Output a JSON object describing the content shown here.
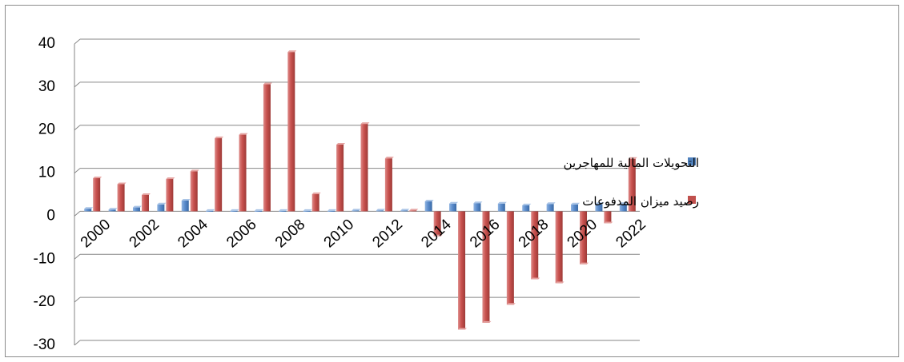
{
  "chart_data": {
    "type": "bar",
    "title": "",
    "xlabel": "",
    "ylabel": "",
    "ylim": [
      -30,
      40
    ],
    "yticks": [
      -30,
      -20,
      -10,
      0,
      10,
      20,
      30,
      40
    ],
    "grid": true,
    "legend_position": "right",
    "categories": [
      2000,
      2001,
      2002,
      2003,
      2004,
      2005,
      2006,
      2007,
      2008,
      2009,
      2010,
      2011,
      2012,
      2013,
      2014,
      2015,
      2016,
      2017,
      2018,
      2019,
      2020,
      2021,
      2022
    ],
    "tick_labels": [
      "2000",
      "2002",
      "2004",
      "2006",
      "2008",
      "2010",
      "2012",
      "2014",
      "2016",
      "2018",
      "2020",
      "2022"
    ],
    "series": [
      {
        "name": "التحويلات المالية للمهاجرين",
        "color": "#4f81bd",
        "values": [
          0.6,
          0.4,
          0.9,
          1.6,
          2.5,
          0.1,
          0.1,
          0.1,
          0.1,
          0.1,
          0.1,
          0.2,
          0.2,
          0.2,
          2.3,
          1.8,
          1.9,
          1.8,
          1.4,
          1.7,
          1.6,
          1.7,
          1.7
        ]
      },
      {
        "name": "رصيد ميزان المدفوعات",
        "color": "#c0504d",
        "values": [
          7.7,
          6.3,
          3.8,
          7.5,
          9.3,
          17.0,
          17.8,
          29.5,
          37.0,
          4.0,
          15.5,
          20.3,
          12.3,
          0.2,
          -5.8,
          -27.5,
          -25.9,
          -21.7,
          -15.8,
          -16.7,
          -12.3,
          -2.8,
          12.2
        ]
      }
    ]
  }
}
